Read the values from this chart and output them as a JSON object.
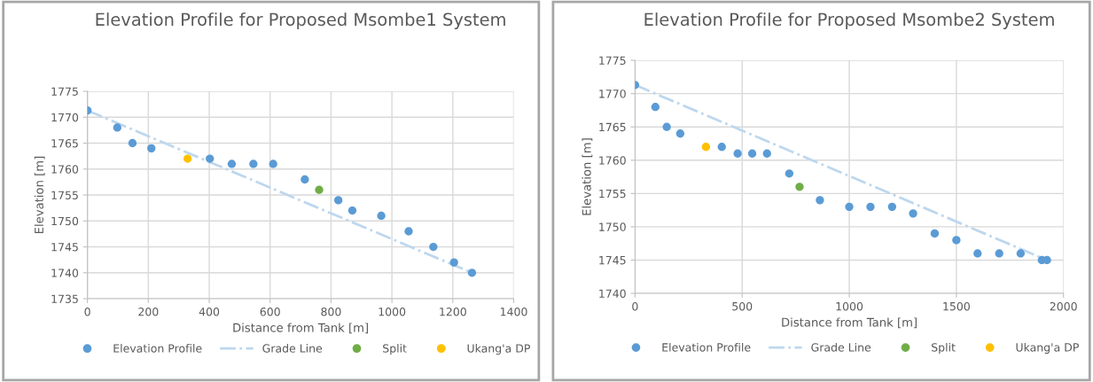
{
  "chart_data": [
    {
      "type": "scatter",
      "title": "Elevation Profile for Proposed Msombe1 System",
      "xlabel": "Distance from Tank [m]",
      "ylabel": "Elevation [m]",
      "xlim": [
        0,
        1400
      ],
      "xticks": [
        0,
        200,
        400,
        600,
        800,
        1000,
        1200,
        1400
      ],
      "ylim": [
        1735,
        1775
      ],
      "yticks": [
        1735,
        1740,
        1745,
        1750,
        1755,
        1760,
        1765,
        1770,
        1775
      ],
      "grid": true,
      "legend": "bottom",
      "series": [
        {
          "name": "Elevation Profile",
          "marker": "circle",
          "color": "#5b9bd5",
          "x": [
            0,
            98,
            148,
            210,
            402,
            474,
            545,
            610,
            714,
            824,
            870,
            965,
            1055,
            1136,
            1204,
            1263
          ],
          "values": [
            1771.3,
            1768,
            1765,
            1764,
            1762,
            1761,
            1761,
            1761,
            1758,
            1754,
            1752,
            1751,
            1748,
            1745,
            1742,
            1740
          ]
        },
        {
          "name": "Grade Line",
          "type": "line",
          "line_style": "dashed",
          "color": "#bdd7ee",
          "x": [
            0,
            1263
          ],
          "values": [
            1771.3,
            1740
          ]
        },
        {
          "name": "Split",
          "marker": "circle",
          "color": "#70ad47",
          "x": [
            761
          ],
          "values": [
            1756
          ]
        },
        {
          "name": "Ukang'a DP",
          "marker": "circle",
          "color": "#ffc000",
          "x": [
            329
          ],
          "values": [
            1762
          ]
        }
      ]
    },
    {
      "type": "scatter",
      "title": "Elevation Profile for Proposed Msombe2 System",
      "xlabel": "Distance from Tank [m]",
      "ylabel": "Elevation [m]",
      "xlim": [
        0,
        2000
      ],
      "xticks": [
        0,
        500,
        1000,
        1500,
        2000
      ],
      "ylim": [
        1740,
        1775
      ],
      "yticks": [
        1740,
        1745,
        1750,
        1755,
        1760,
        1765,
        1770,
        1775
      ],
      "grid": true,
      "legend": "bottom",
      "series": [
        {
          "name": "Elevation Profile",
          "marker": "circle",
          "color": "#5b9bd5",
          "x": [
            0,
            95,
            148,
            211,
            405,
            479,
            547,
            616,
            720,
            863,
            1000,
            1099,
            1200,
            1298,
            1399,
            1500,
            1599,
            1700,
            1800,
            1899,
            1923
          ],
          "values": [
            1771.3,
            1768,
            1765,
            1764,
            1762,
            1761,
            1761,
            1761,
            1758,
            1754,
            1753,
            1753,
            1753,
            1752,
            1749,
            1748,
            1746,
            1746,
            1746,
            1745,
            1745
          ]
        },
        {
          "name": "Grade Line",
          "type": "line",
          "line_style": "dashed",
          "color": "#bdd7ee",
          "x": [
            0,
            1923
          ],
          "values": [
            1771.3,
            1745
          ]
        },
        {
          "name": "Split",
          "marker": "circle",
          "color": "#70ad47",
          "x": [
            768
          ],
          "values": [
            1756
          ]
        },
        {
          "name": "Ukang'a DP",
          "marker": "circle",
          "color": "#ffc000",
          "x": [
            331
          ],
          "values": [
            1762
          ]
        }
      ]
    }
  ]
}
